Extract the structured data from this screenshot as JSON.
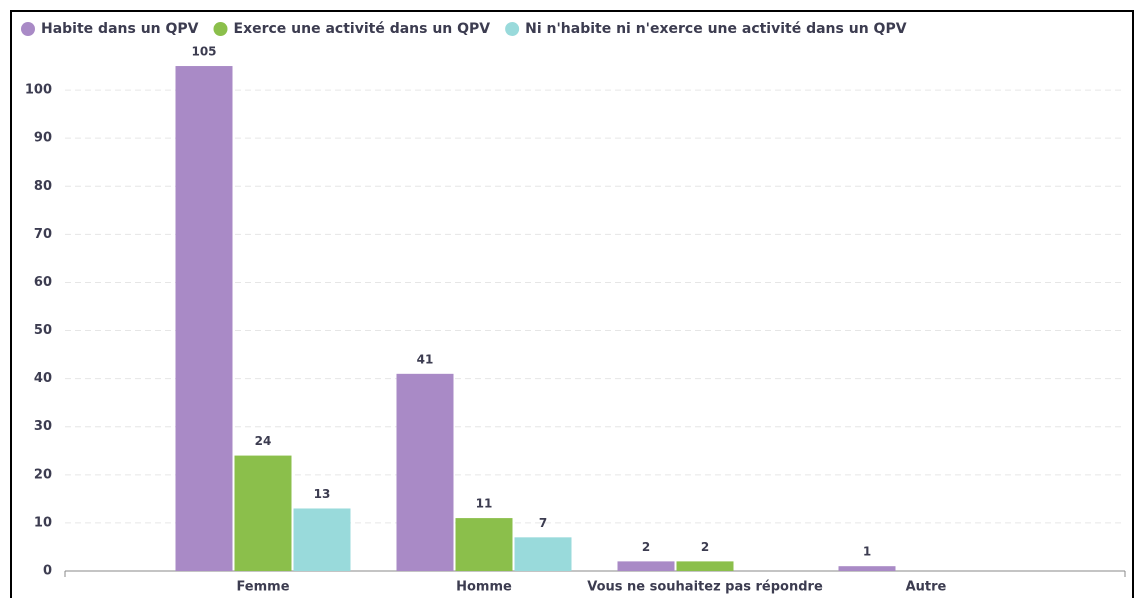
{
  "chart_data": {
    "type": "bar",
    "categories": [
      "Femme",
      "Homme",
      "Vous ne souhaitez pas répondre",
      "Autre"
    ],
    "series": [
      {
        "name": "Habite dans un QPV",
        "color": "#a98ac6",
        "values": [
          105,
          41,
          2,
          1
        ]
      },
      {
        "name": "Exerce une activité dans un QPV",
        "color": "#8bbf4b",
        "values": [
          24,
          11,
          2,
          null
        ]
      },
      {
        "name": "Ni n'habite ni n'exerce une activité dans un QPV",
        "color": "#99dadb",
        "values": [
          13,
          7,
          null,
          null
        ]
      }
    ],
    "ylim": [
      0,
      110
    ],
    "yticks": [
      0,
      10,
      20,
      30,
      40,
      50,
      60,
      70,
      80,
      90,
      100
    ],
    "grid": true,
    "legend": "top"
  }
}
